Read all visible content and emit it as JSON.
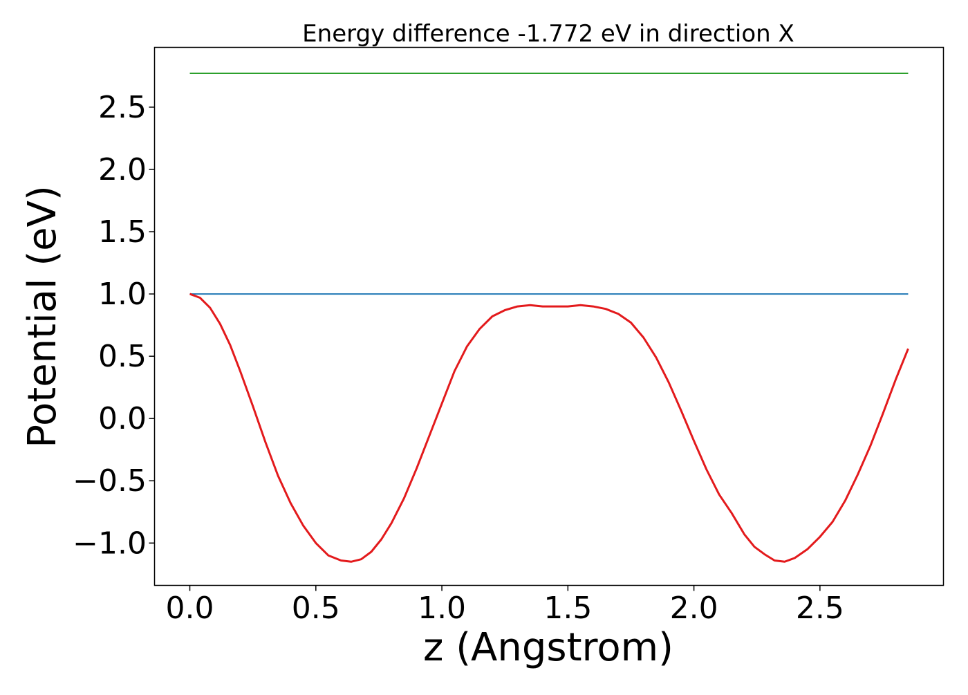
{
  "chart_data": {
    "type": "line",
    "title": "Energy difference -1.772 eV in direction X",
    "xlabel": "z (Angstrom)",
    "ylabel": "Potential (eV)",
    "xlim": [
      -0.14,
      2.99
    ],
    "ylim": [
      -1.34,
      2.98
    ],
    "xticks": [
      0.0,
      0.5,
      1.0,
      1.5,
      2.0,
      2.5
    ],
    "xtick_labels": [
      "0.0",
      "0.5",
      "1.0",
      "1.5",
      "2.0",
      "2.5"
    ],
    "yticks": [
      -1.0,
      -0.5,
      0.0,
      0.5,
      1.0,
      1.5,
      2.0,
      2.5
    ],
    "ytick_labels": [
      "−1.0",
      "−0.5",
      "0.0",
      "0.5",
      "1.0",
      "1.5",
      "2.0",
      "2.5"
    ],
    "grid": false,
    "legend": "none",
    "series": [
      {
        "color": "#2ca02c",
        "x": [
          0.0,
          2.85
        ],
        "y": [
          2.772,
          2.772
        ]
      },
      {
        "color": "#1f77b4",
        "x": [
          0.0,
          2.85
        ],
        "y": [
          1.0,
          1.0
        ]
      },
      {
        "color": "#e31a1c",
        "x": [
          0.0,
          0.04,
          0.08,
          0.12,
          0.16,
          0.2,
          0.25,
          0.3,
          0.35,
          0.4,
          0.45,
          0.5,
          0.55,
          0.6,
          0.64,
          0.68,
          0.72,
          0.76,
          0.8,
          0.85,
          0.9,
          0.95,
          1.0,
          1.05,
          1.1,
          1.15,
          1.2,
          1.25,
          1.3,
          1.35,
          1.4,
          1.45,
          1.5,
          1.55,
          1.6,
          1.65,
          1.7,
          1.75,
          1.8,
          1.85,
          1.9,
          1.95,
          2.0,
          2.05,
          2.1,
          2.15,
          2.2,
          2.24,
          2.28,
          2.32,
          2.36,
          2.4,
          2.45,
          2.5,
          2.55,
          2.6,
          2.65,
          2.7,
          2.75,
          2.8,
          2.85
        ],
        "y": [
          1.0,
          0.97,
          0.89,
          0.76,
          0.59,
          0.38,
          0.1,
          -0.19,
          -0.46,
          -0.68,
          -0.86,
          -1.0,
          -1.1,
          -1.14,
          -1.15,
          -1.13,
          -1.07,
          -0.97,
          -0.84,
          -0.64,
          -0.4,
          -0.14,
          0.12,
          0.38,
          0.58,
          0.72,
          0.82,
          0.87,
          0.9,
          0.91,
          0.9,
          0.9,
          0.9,
          0.91,
          0.9,
          0.88,
          0.84,
          0.77,
          0.65,
          0.49,
          0.29,
          0.06,
          -0.18,
          -0.41,
          -0.61,
          -0.76,
          -0.93,
          -1.03,
          -1.09,
          -1.14,
          -1.15,
          -1.12,
          -1.05,
          -0.95,
          -0.83,
          -0.66,
          -0.45,
          -0.22,
          0.04,
          0.31,
          0.56
        ]
      }
    ]
  }
}
